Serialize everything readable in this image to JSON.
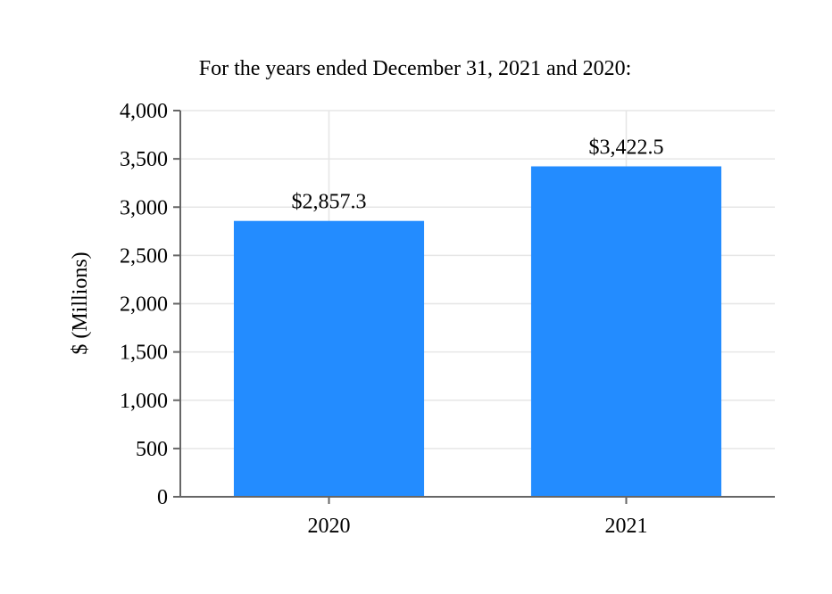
{
  "chart_data": {
    "type": "bar",
    "title": "For the years ended December 31, 2021 and 2020:",
    "ylabel": "$ (Millions)",
    "xlabel": "",
    "categories": [
      "2020",
      "2021"
    ],
    "values": [
      2857.3,
      3422.5
    ],
    "data_labels": [
      "$2,857.3",
      "$3,422.5"
    ],
    "ylim": [
      0,
      4000
    ],
    "yticks": [
      0,
      500,
      1000,
      1500,
      2000,
      2500,
      3000,
      3500,
      4000
    ],
    "ytick_labels": [
      "0",
      "500",
      "1,000",
      "1,500",
      "2,000",
      "2,500",
      "3,000",
      "3,500",
      "4,000"
    ],
    "grid": true,
    "legend": false,
    "bar_color": "#238cff"
  }
}
